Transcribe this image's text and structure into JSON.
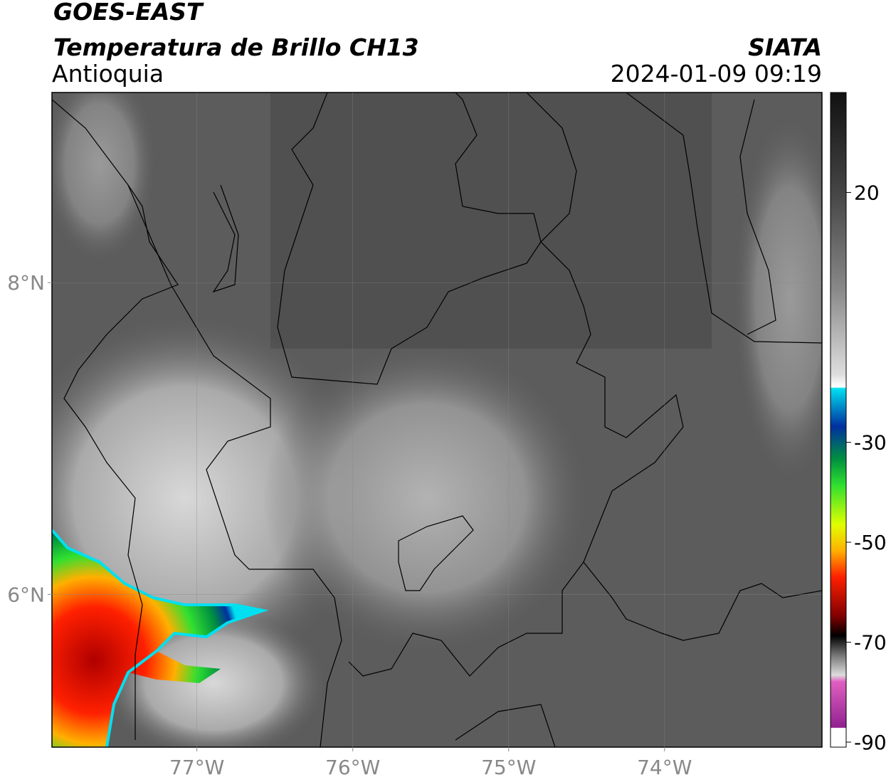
{
  "header": {
    "title": "GOES-EAST",
    "subtitle": "Temperatura de Brillo CH13",
    "region": "Antioquia",
    "source": "SIATA",
    "timestamp": "2024-01-09 09:19"
  },
  "map": {
    "xlim": [
      -77.93,
      -72.99
    ],
    "ylim": [
      5.02,
      9.22
    ],
    "xticks": [
      {
        "value": -77,
        "label": "77°W"
      },
      {
        "value": -76,
        "label": "76°W"
      },
      {
        "value": -75,
        "label": "75°W"
      },
      {
        "value": -74,
        "label": "74°W"
      }
    ],
    "yticks": [
      {
        "value": 6,
        "label": "6°N"
      },
      {
        "value": 8,
        "label": "8°N"
      }
    ],
    "grid": true
  },
  "colorbar": {
    "lim": [
      -91,
      40
    ],
    "ticks": [
      20,
      -30,
      -50,
      -70,
      -90
    ]
  }
}
